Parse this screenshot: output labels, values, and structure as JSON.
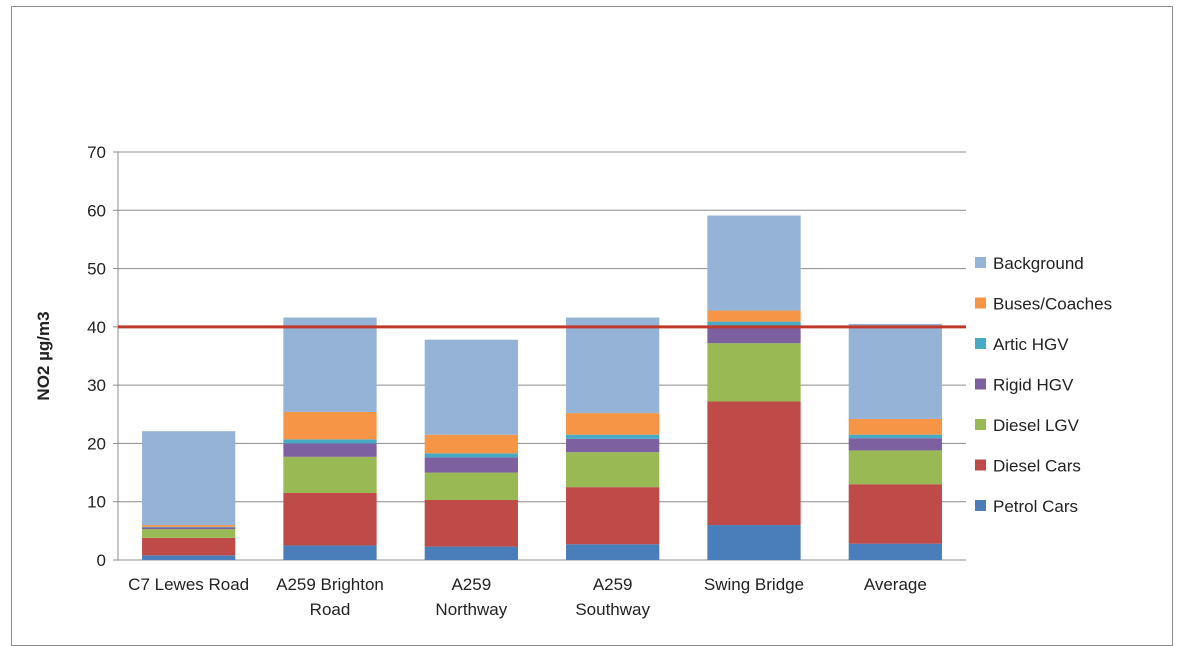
{
  "chart_data": {
    "type": "bar",
    "stacked": true,
    "title": "",
    "xlabel": "",
    "ylabel": "NO2 µg/m3",
    "ylim": [
      0,
      70
    ],
    "yticks": [
      0,
      10,
      20,
      30,
      40,
      50,
      60,
      70
    ],
    "grid": true,
    "legend_position": "right",
    "categories": [
      [
        "C7 Lewes Road"
      ],
      [
        "A259 Brighton",
        "Road"
      ],
      [
        "A259",
        "Northway"
      ],
      [
        "A259",
        "Southway"
      ],
      [
        "Swing Bridge"
      ],
      [
        "Average"
      ]
    ],
    "series": [
      {
        "name": "Petrol Cars",
        "color": "#4a7ebb",
        "values": [
          0.8,
          2.5,
          2.3,
          2.7,
          6.0,
          2.8
        ]
      },
      {
        "name": "Diesel Cars",
        "color": "#be4b48",
        "values": [
          3.0,
          9.0,
          8.0,
          9.8,
          21.2,
          10.2
        ]
      },
      {
        "name": "Diesel LGV",
        "color": "#98b954",
        "values": [
          1.5,
          6.2,
          4.7,
          6.0,
          10.0,
          5.8
        ]
      },
      {
        "name": "Rigid HGV",
        "color": "#7d60a0",
        "values": [
          0.3,
          2.3,
          2.6,
          2.3,
          2.7,
          2.1
        ]
      },
      {
        "name": "Artic HGV",
        "color": "#46aac5",
        "values": [
          0.1,
          0.7,
          0.7,
          0.7,
          1.0,
          0.6
        ]
      },
      {
        "name": "Buses/Coaches",
        "color": "#f69545",
        "values": [
          0.3,
          4.7,
          3.2,
          3.7,
          1.9,
          2.7
        ]
      },
      {
        "name": "Background",
        "color": "#95b3d7",
        "values": [
          16.1,
          16.2,
          16.3,
          16.4,
          16.3,
          16.3
        ]
      }
    ],
    "reference_line": {
      "value": 40,
      "color": "#c0392b"
    }
  }
}
